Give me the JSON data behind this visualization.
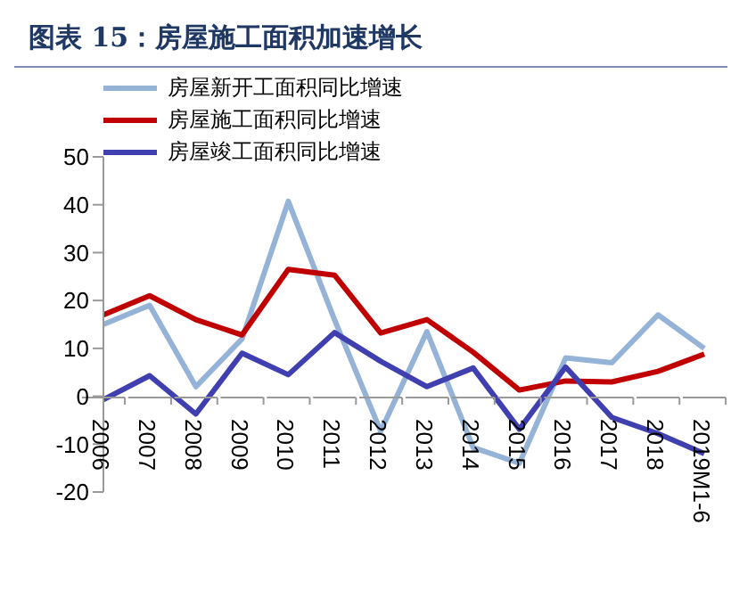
{
  "chart_data": {
    "type": "line",
    "title": "图表 15：房屋施工面积加速增长",
    "categories": [
      "2006",
      "2007",
      "2008",
      "2009",
      "2010",
      "2011",
      "2012",
      "2013",
      "2014",
      "2015",
      "2016",
      "2017",
      "2018",
      "2019M1-6"
    ],
    "series": [
      {
        "name": "房屋新开工面积同比增速",
        "color": "#95b3d7",
        "values": [
          15,
          19,
          2,
          12,
          40.7,
          16,
          -7.3,
          13.5,
          -10.7,
          -14,
          8,
          7,
          17,
          10
        ]
      },
      {
        "name": "房屋施工面积同比增速",
        "color": "#c00000",
        "values": [
          17,
          21,
          16,
          12.8,
          26.5,
          25.3,
          13.2,
          16,
          9.2,
          1.3,
          3.2,
          3,
          5.2,
          8.8
        ]
      },
      {
        "name": "房屋竣工面积同比增速",
        "color": "#3f3fb0",
        "values": [
          -0.7,
          4.3,
          -3.7,
          9,
          4.5,
          13.3,
          7.3,
          2,
          5.9,
          -6.9,
          6.1,
          -4.4,
          -7.8,
          -12
        ]
      }
    ],
    "ylim": [
      -20,
      50
    ],
    "yticks": [
      -20,
      -10,
      0,
      10,
      20,
      30,
      40,
      50
    ],
    "grid": false,
    "legend": "top",
    "marker": "none",
    "line_style": "solid"
  }
}
